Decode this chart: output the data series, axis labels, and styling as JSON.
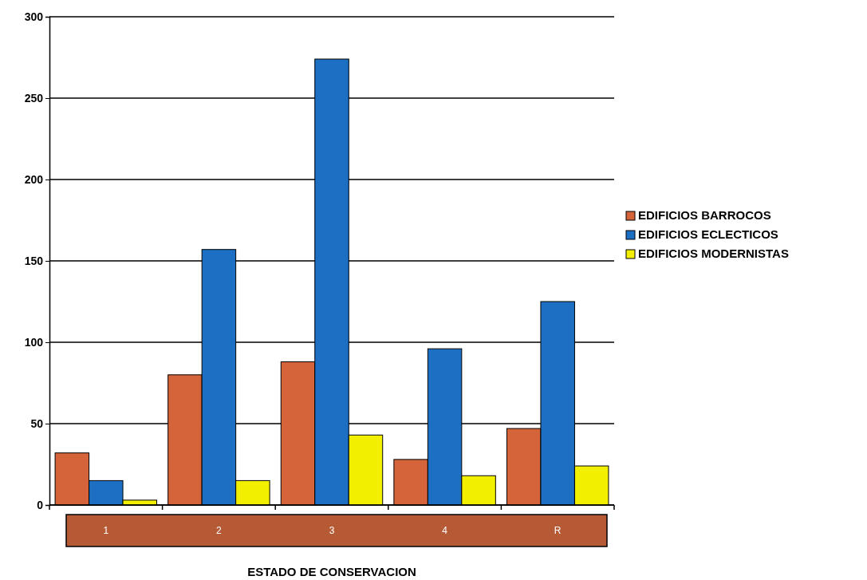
{
  "chart_data": {
    "type": "bar",
    "xlabel": "ESTADO DE CONSERVACION",
    "categories": [
      "1",
      "2",
      "3",
      "4",
      "R"
    ],
    "series": [
      {
        "name": "EDIFICIOS BARROCOS",
        "color": "#d6643a",
        "values": [
          32,
          80,
          88,
          28,
          47
        ]
      },
      {
        "name": "EDIFICIOS ECLECTICOS",
        "color": "#1c6fc2",
        "values": [
          15,
          157,
          274,
          96,
          125
        ]
      },
      {
        "name": "EDIFICIOS MODERNISTAS",
        "color": "#f2f000",
        "values": [
          3,
          15,
          43,
          18,
          24
        ]
      }
    ],
    "ylim": [
      0,
      300
    ],
    "yticks": [
      0,
      50,
      100,
      150,
      200,
      250,
      300
    ],
    "grid": "y",
    "legend": "right"
  }
}
